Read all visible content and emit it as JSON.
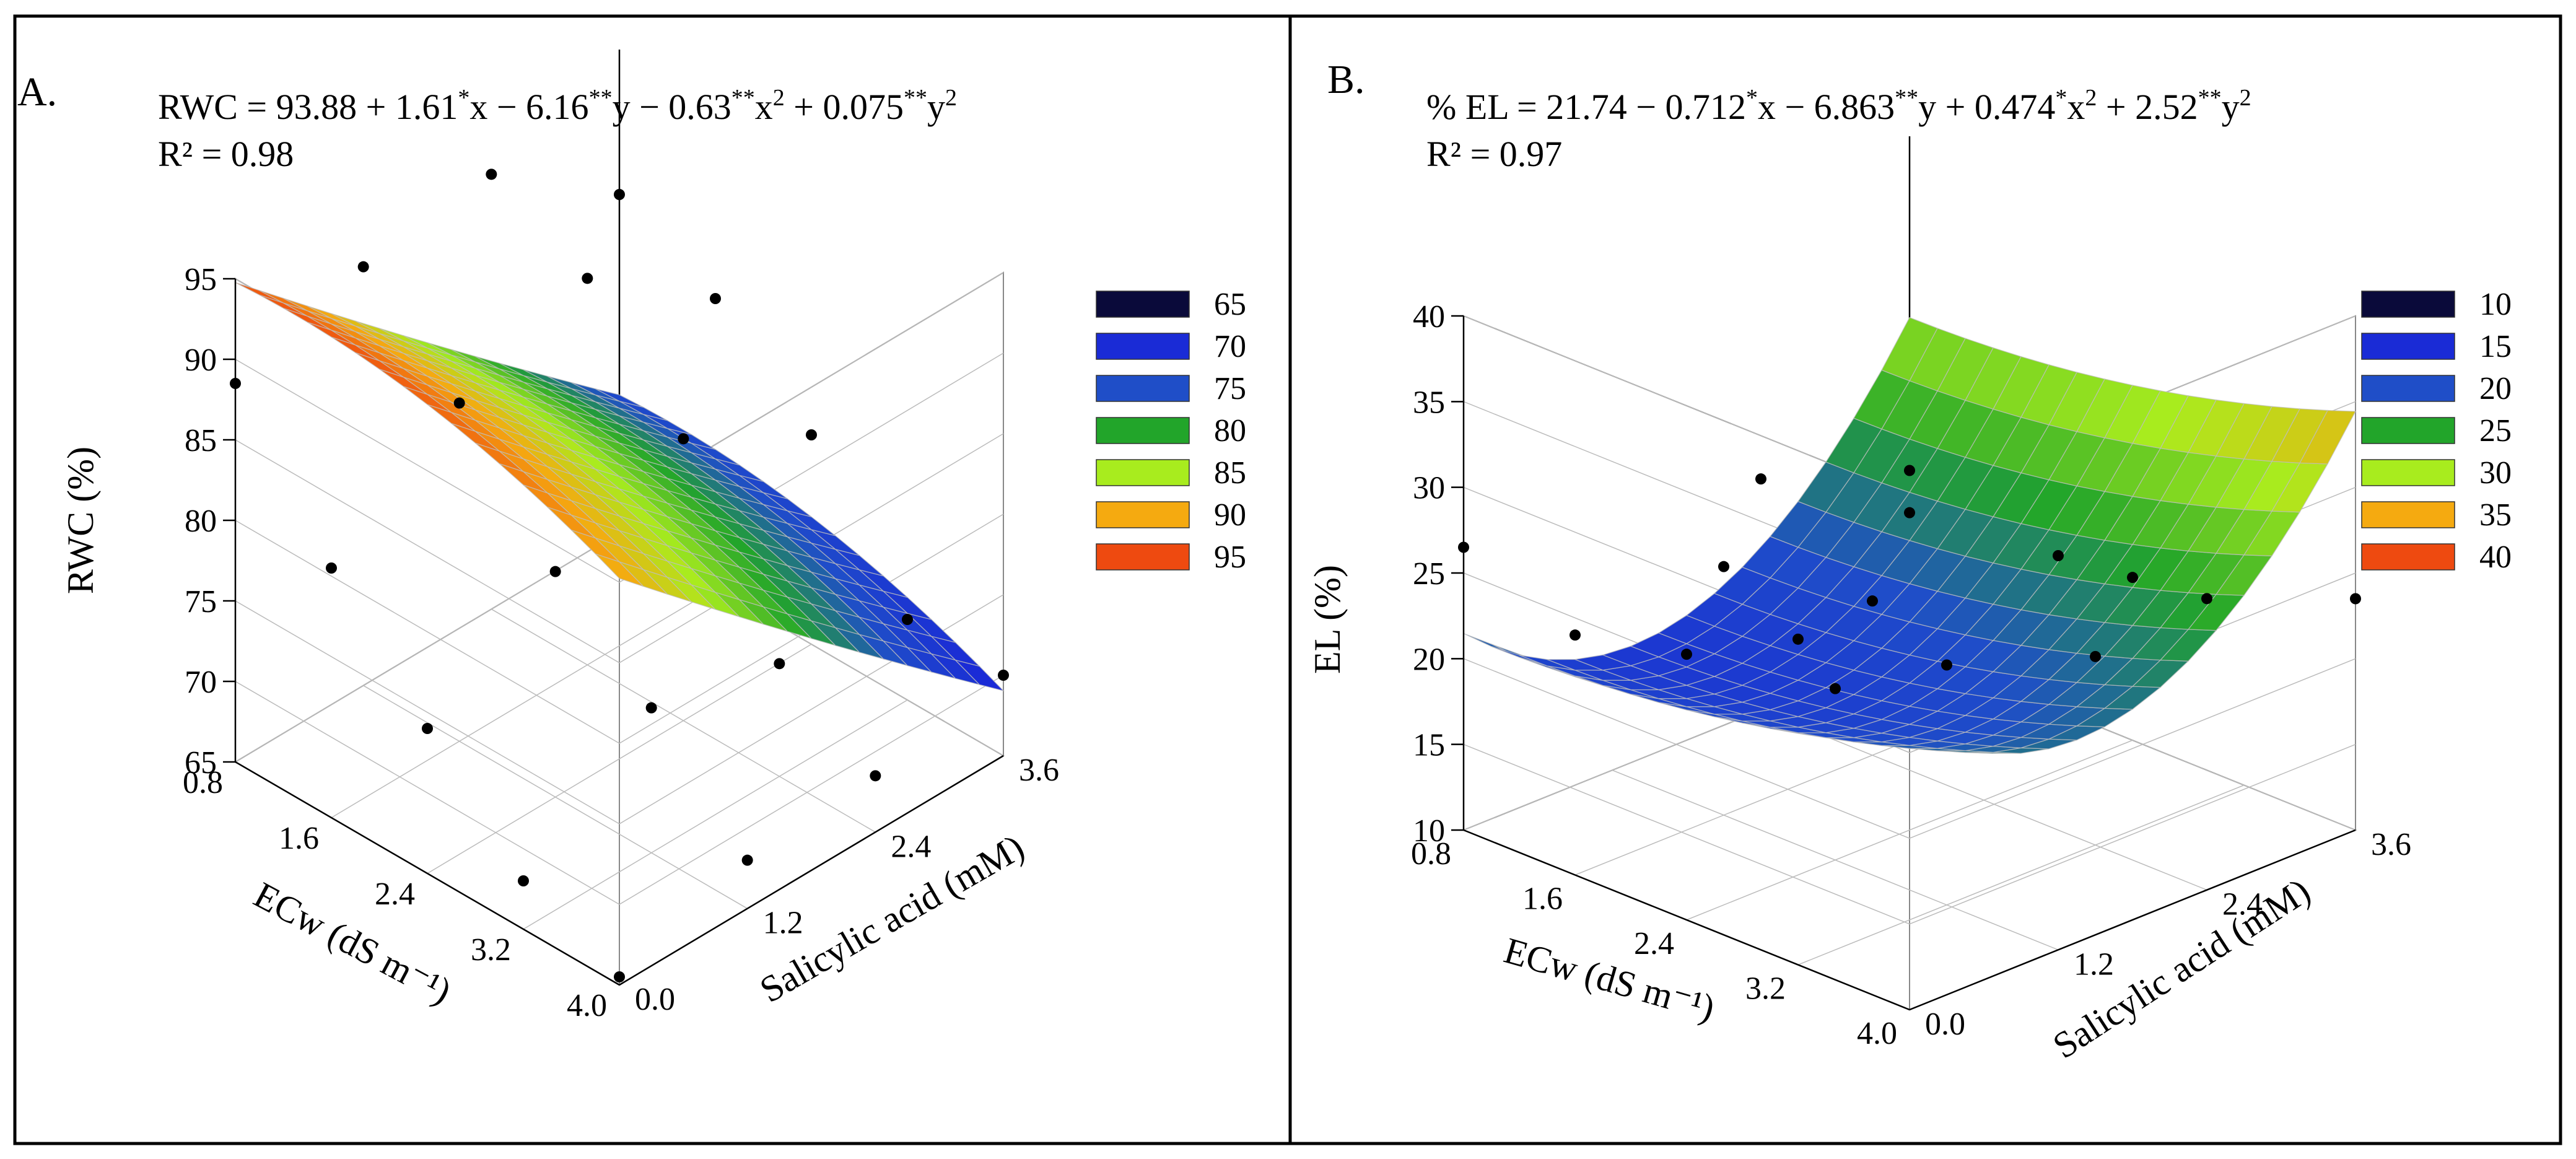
{
  "chart_data": [
    {
      "type": "surface",
      "panel_label": "A.",
      "equation": "RWC = 93.88 + 1.61*x − 6.16**y − 0.63**x² + 0.075**y²",
      "equation_parts": {
        "lhs": "RWC = 93.88 + 1.61",
        "m1": "*",
        "t1": "x − 6.16",
        "m2": "**",
        "t2": "y − 0.63",
        "m3": "**",
        "t3": "x",
        "m4": "**",
        "t4": "y",
        "r2": "R² = 0.98"
      },
      "zlabel": "RWC (%)",
      "xlabel": "ECw (dS m⁻¹)",
      "ylabel": "Salicylic acid (mM)",
      "z_ticks": [
        "65",
        "70",
        "75",
        "80",
        "85",
        "90",
        "95"
      ],
      "ecw_ticks": [
        "0.8",
        "1.6",
        "2.4",
        "3.2",
        "4.0"
      ],
      "sa_ticks": [
        "0.0",
        "1.2",
        "2.4",
        "3.6"
      ],
      "zlim": [
        65,
        95
      ],
      "ecw_range": [
        0.8,
        4.0
      ],
      "sa_range": [
        0.0,
        3.6
      ],
      "coefficients": {
        "c0": 93.88,
        "cx": 1.61,
        "cy": -6.16,
        "cxx": -0.63,
        "cyy": 0.075
      },
      "legend": [
        "65",
        "70",
        "75",
        "80",
        "85",
        "90",
        "95"
      ],
      "legend_colors": [
        "#0a0a3a",
        "#1a2bd6",
        "#1f4ec8",
        "#22a52a",
        "#a8ec1e",
        "#f5aa10",
        "#ee4a10"
      ],
      "observed": [
        {
          "ecw": 0.8,
          "sa": 0.0,
          "rwc": 88.5
        },
        {
          "ecw": 0.8,
          "sa": 1.2,
          "rwc": 91.0
        },
        {
          "ecw": 0.8,
          "sa": 2.4,
          "rwc": 92.0
        },
        {
          "ecw": 0.8,
          "sa": 3.6,
          "rwc": 86.0
        },
        {
          "ecw": 1.6,
          "sa": 0.0,
          "rwc": 80.5
        },
        {
          "ecw": 1.6,
          "sa": 1.2,
          "rwc": 86.0
        },
        {
          "ecw": 1.6,
          "sa": 2.4,
          "rwc": 89.0
        },
        {
          "ecw": 1.6,
          "sa": 3.6,
          "rwc": 83.0
        },
        {
          "ecw": 2.4,
          "sa": 0.0,
          "rwc": 74.0
        },
        {
          "ecw": 2.4,
          "sa": 1.2,
          "rwc": 79.0
        },
        {
          "ecw": 2.4,
          "sa": 2.4,
          "rwc": 82.5
        },
        {
          "ecw": 2.4,
          "sa": 3.6,
          "rwc": 78.0
        },
        {
          "ecw": 3.2,
          "sa": 0.0,
          "rwc": 68.0
        },
        {
          "ecw": 3.2,
          "sa": 1.2,
          "rwc": 74.0
        },
        {
          "ecw": 3.2,
          "sa": 2.4,
          "rwc": 72.0
        },
        {
          "ecw": 3.2,
          "sa": 3.6,
          "rwc": 70.0
        },
        {
          "ecw": 4.0,
          "sa": 0.0,
          "rwc": 65.5
        },
        {
          "ecw": 4.0,
          "sa": 1.2,
          "rwc": 68.0
        },
        {
          "ecw": 4.0,
          "sa": 2.4,
          "rwc": 68.5
        },
        {
          "ecw": 4.0,
          "sa": 3.6,
          "rwc": 70.0
        }
      ]
    },
    {
      "type": "surface",
      "panel_label": "B.",
      "equation": "% EL = 21.74 − 0.712*x − 6.863**y + 0.474*x² + 2.52**y²",
      "equation_parts": {
        "lhs": "% EL = 21.74 − 0.712",
        "m1": "*",
        "t1": "x − 6.863",
        "m2": "**",
        "t2": "y + 0.474",
        "m3": "*",
        "t3": "x",
        "m4": "**",
        "t4": "y",
        "r2": "R² = 0.97"
      },
      "zlabel": "EL (%)",
      "xlabel": "ECw (dS m⁻¹)",
      "ylabel": "Salicylic acid (mM)",
      "z_ticks": [
        "10",
        "15",
        "20",
        "25",
        "30",
        "35",
        "40"
      ],
      "ecw_ticks": [
        "0.8",
        "1.6",
        "2.4",
        "3.2",
        "4.0"
      ],
      "sa_ticks": [
        "0.0",
        "1.2",
        "2.4",
        "3.6"
      ],
      "zlim": [
        10,
        40
      ],
      "ecw_range": [
        0.8,
        4.0
      ],
      "sa_range": [
        0.0,
        3.6
      ],
      "coefficients": {
        "c0": 21.74,
        "cx": -0.712,
        "cy": -6.863,
        "cxx": 0.474,
        "cyy": 2.52
      },
      "legend": [
        "10",
        "15",
        "20",
        "25",
        "30",
        "35",
        "40"
      ],
      "legend_colors": [
        "#0a0a3a",
        "#1a2bd6",
        "#1f4ec8",
        "#22a52a",
        "#a8ec1e",
        "#f5aa10",
        "#ee4a10"
      ],
      "observed": [
        {
          "ecw": 0.8,
          "sa": 3.6,
          "el": 20.5
        },
        {
          "ecw": 0.8,
          "sa": 2.4,
          "el": 23.5
        },
        {
          "ecw": 1.6,
          "sa": 2.4,
          "el": 19.0
        },
        {
          "ecw": 1.6,
          "sa": 1.2,
          "el": 24.5
        },
        {
          "ecw": 2.4,
          "sa": 1.2,
          "el": 20.0
        },
        {
          "ecw": 2.4,
          "sa": 0.0,
          "el": 25.5
        },
        {
          "ecw": 2.4,
          "sa": 3.6,
          "el": 19.5
        },
        {
          "ecw": 3.2,
          "sa": 0.0,
          "el": 29.0
        },
        {
          "ecw": 3.2,
          "sa": 2.4,
          "el": 21.0
        },
        {
          "ecw": 3.2,
          "sa": 1.2,
          "el": 24.0
        },
        {
          "ecw": 4.0,
          "sa": 0.0,
          "el": 39.0
        },
        {
          "ecw": 4.0,
          "sa": 1.2,
          "el": 33.0
        },
        {
          "ecw": 4.0,
          "sa": 2.4,
          "el": 27.0
        },
        {
          "ecw": 4.0,
          "sa": 3.6,
          "el": 23.5
        },
        {
          "ecw": 0.8,
          "sa": 0.0,
          "el": 26.5
        },
        {
          "ecw": 1.6,
          "sa": 0.0,
          "el": 24.0
        }
      ]
    }
  ]
}
